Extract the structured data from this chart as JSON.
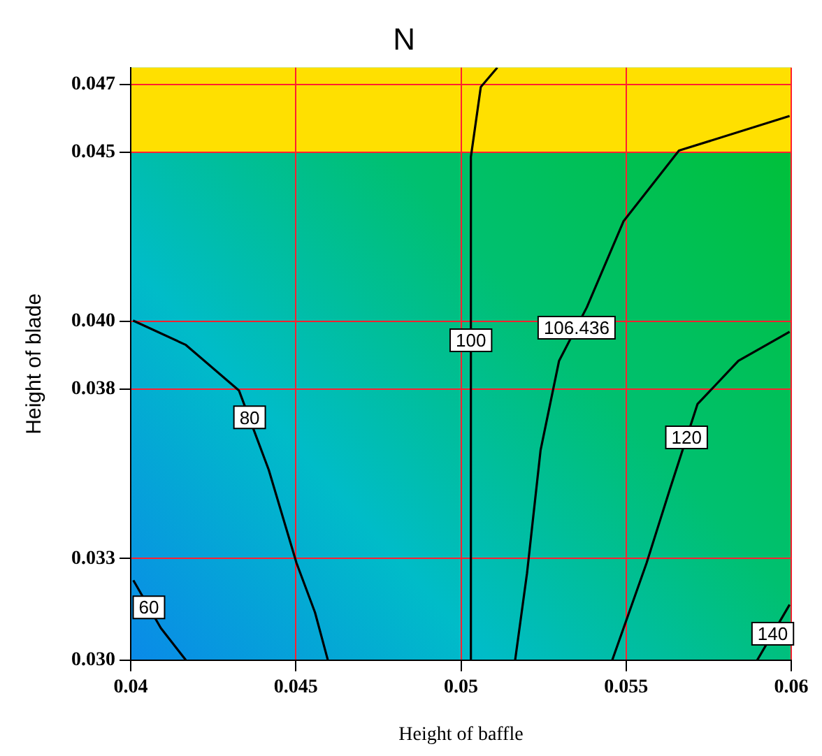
{
  "chart_data": {
    "type": "line",
    "title": "N",
    "xlabel": "Height of baffle",
    "ylabel": "Height of blade",
    "xlim": [
      0.04,
      0.06
    ],
    "xticks": [
      0.04,
      0.045,
      0.05,
      0.055,
      0.06
    ],
    "ylim": [
      0.03,
      0.0475
    ],
    "yticks": [
      {
        "value": 0.03,
        "label": "0.030"
      },
      {
        "value": 0.033,
        "label": "0.033"
      },
      {
        "value": 0.038,
        "label": "0.038"
      },
      {
        "value": 0.04,
        "label": "0.040"
      },
      {
        "value": 0.045,
        "label": "0.045"
      },
      {
        "value": 0.047,
        "label": "0.047"
      }
    ],
    "grid": true,
    "legend": false,
    "marker": "none",
    "line_style": "solid",
    "bands": [
      {
        "axis": "y",
        "from": 0.045,
        "to": 0.0475,
        "color": "#ffe000"
      }
    ],
    "series": [
      {
        "color": "#000000",
        "x": [
          0.04008,
          0.04091,
          0.04167
        ],
        "values": [
          0.03236,
          0.03095,
          0.03
        ]
      },
      {
        "color": "#000000",
        "x": [
          0.04007,
          0.04167,
          0.04328,
          0.04418,
          0.04502,
          0.04558,
          0.04597
        ],
        "values": [
          0.04003,
          0.03931,
          0.03796,
          0.03562,
          0.03287,
          0.03141,
          0.03
        ]
      },
      {
        "color": "#000000",
        "x": [
          0.0503,
          0.0503,
          0.0506,
          0.0511
        ],
        "values": [
          0.03,
          0.04486,
          0.04693,
          0.0475
        ]
      },
      {
        "color": "#000000",
        "x": [
          0.05164,
          0.052,
          0.05241,
          0.05297,
          0.05381,
          0.05492,
          0.0566,
          0.05995
        ],
        "values": [
          0.03,
          0.03257,
          0.0362,
          0.03884,
          0.04042,
          0.04296,
          0.04505,
          0.04607
        ]
      },
      {
        "color": "#000000",
        "x": [
          0.05458,
          0.05562,
          0.05632,
          0.05716,
          0.0584,
          0.05995
        ],
        "values": [
          0.03,
          0.03287,
          0.03503,
          0.03756,
          0.03884,
          0.0397
        ]
      },
      {
        "color": "#000000",
        "x": [
          0.05897,
          0.05995
        ],
        "values": [
          0.03,
          0.03164
        ]
      }
    ],
    "annotations": [
      {
        "text": "60",
        "x": 0.04055,
        "y": 0.03156
      },
      {
        "text": "80",
        "x": 0.0436,
        "y": 0.03717
      },
      {
        "text": "100",
        "x": 0.0503,
        "y": 0.03945
      },
      {
        "text": "106.436",
        "x": 0.0535,
        "y": 0.03982
      },
      {
        "text": "120",
        "x": 0.05683,
        "y": 0.03658
      },
      {
        "text": "140",
        "x": 0.05944,
        "y": 0.03078
      }
    ]
  }
}
